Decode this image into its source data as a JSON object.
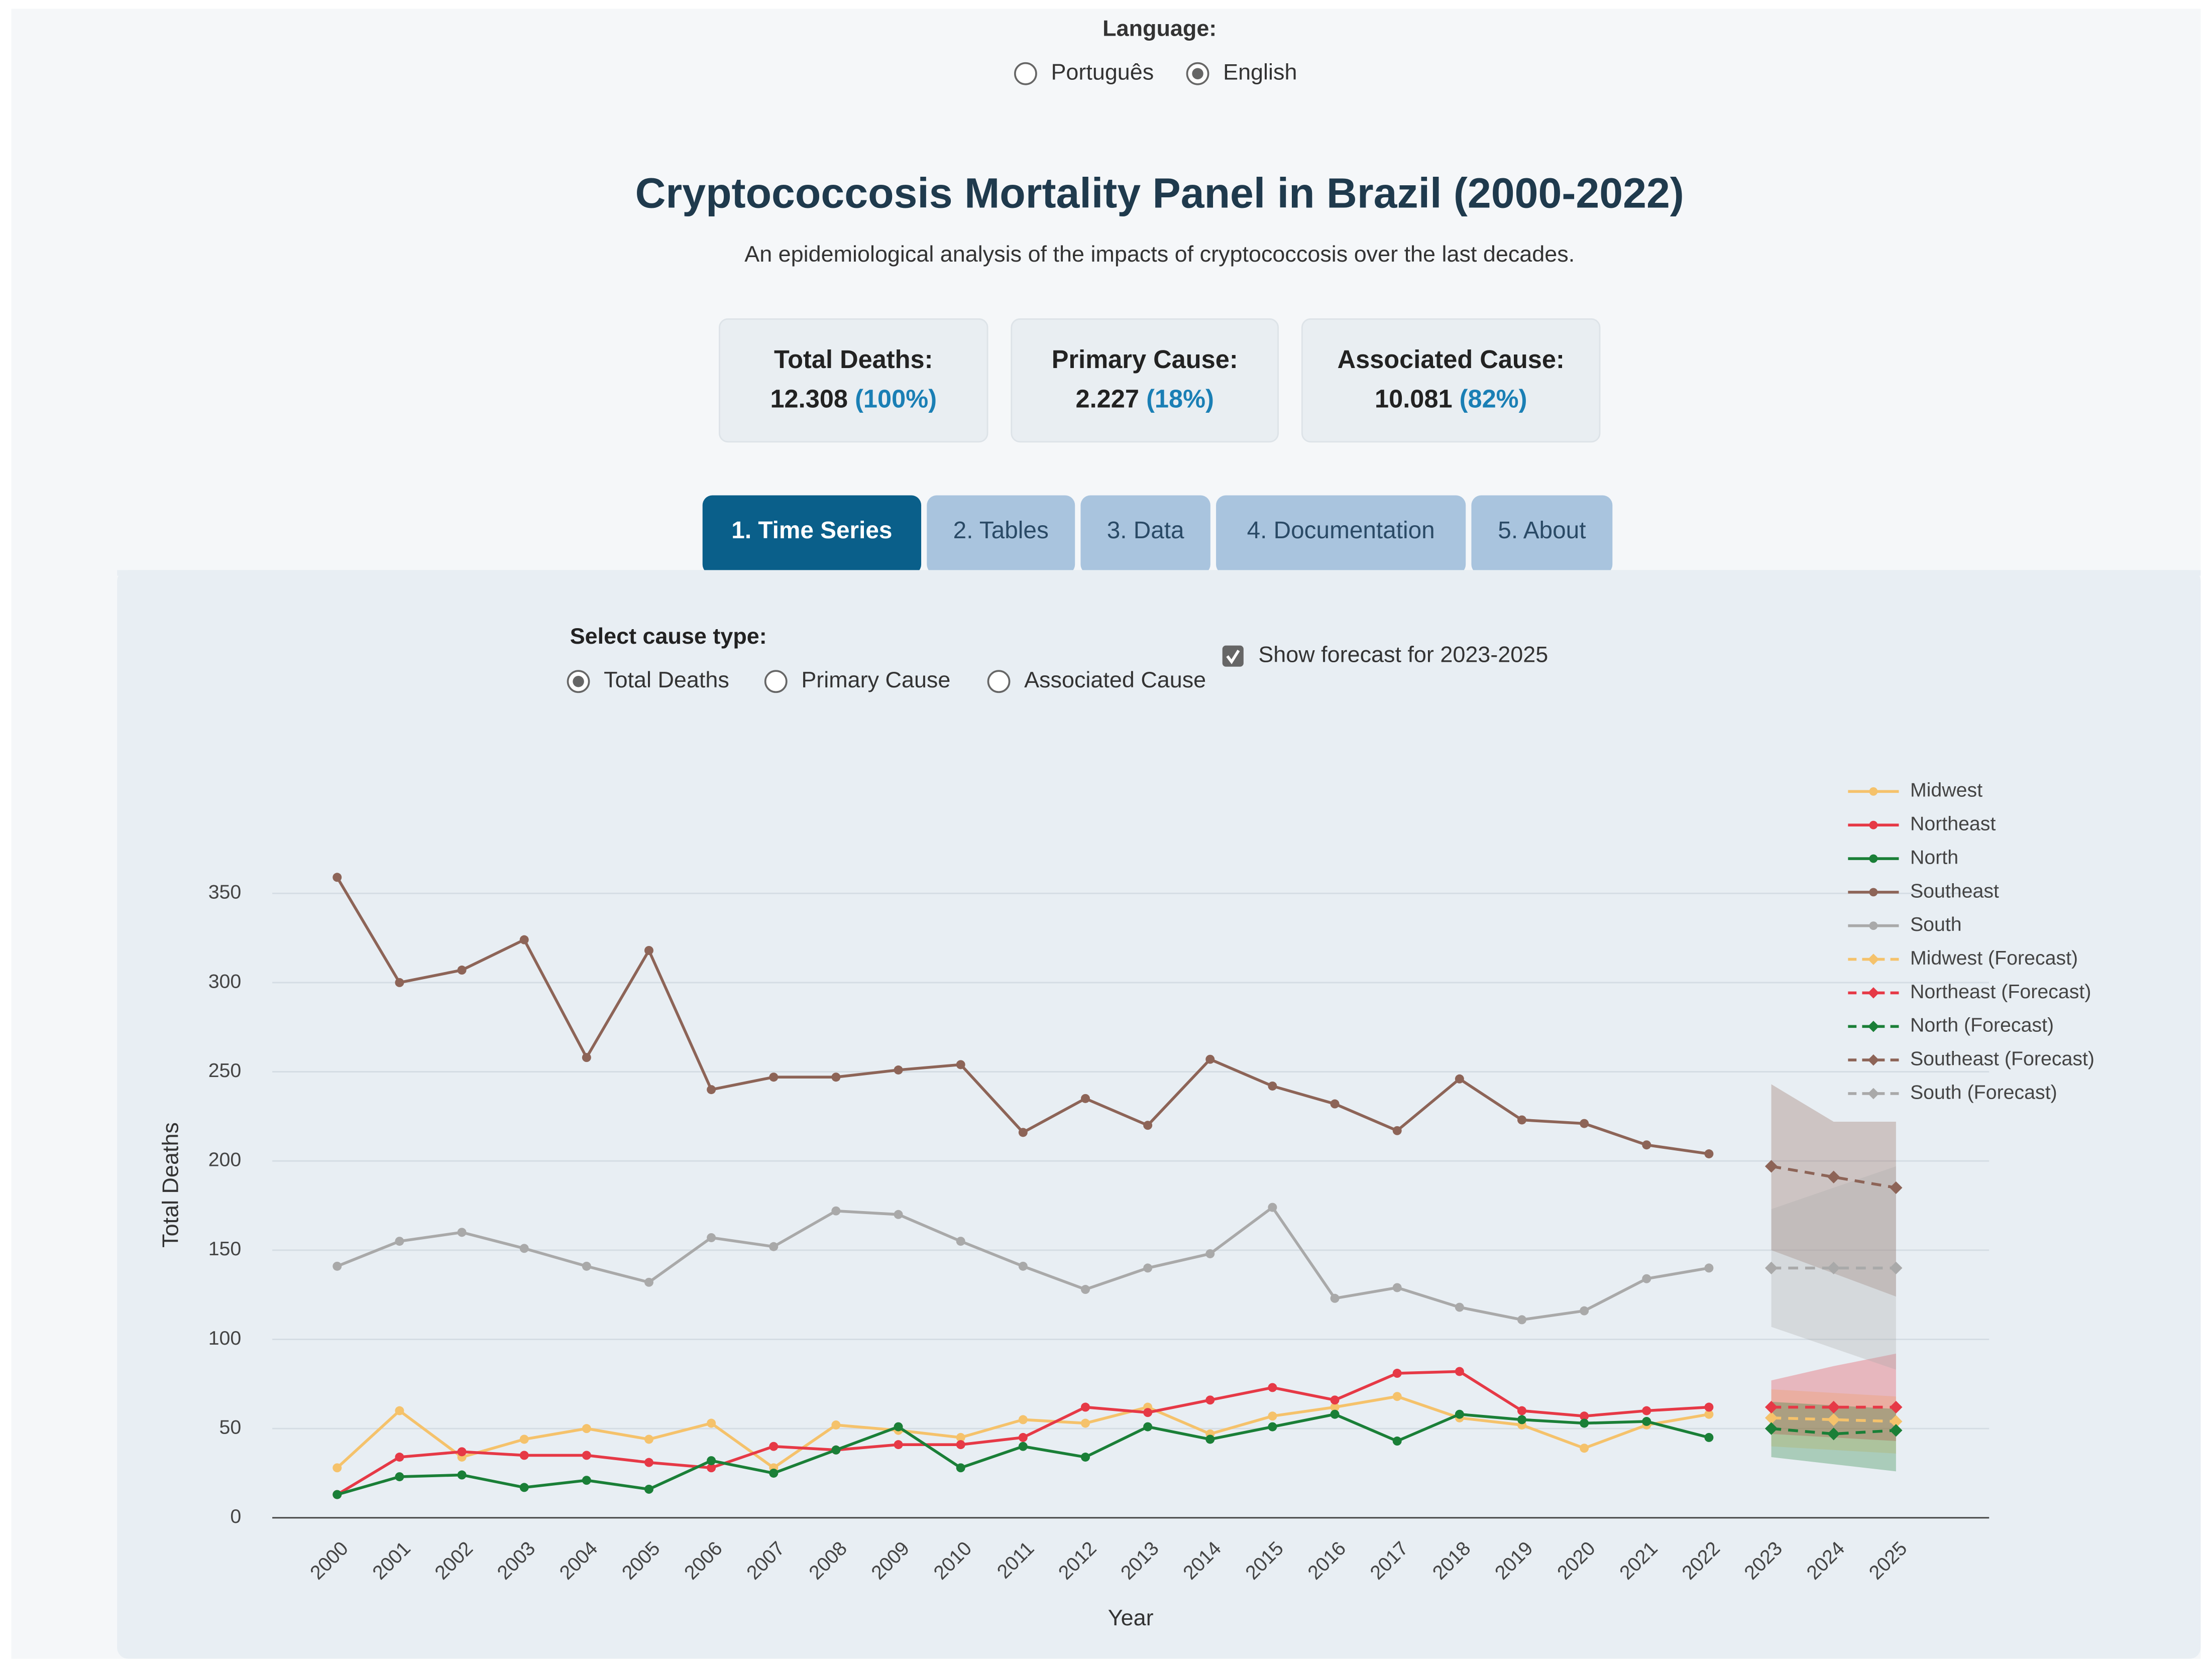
{
  "language": {
    "label": "Language:",
    "options": [
      "Português",
      "English"
    ],
    "selected_index": 1
  },
  "header": {
    "title": "Cryptococcosis Mortality Panel in Brazil (2000-2022)",
    "subtitle": "An epidemiological analysis of the impacts of cryptococcosis over the last decades."
  },
  "cards": [
    {
      "label": "Total Deaths:",
      "value": "12.308",
      "percent": "(100%)"
    },
    {
      "label": "Primary Cause:",
      "value": "2.227",
      "percent": "(18%)"
    },
    {
      "label": "Associated Cause:",
      "value": "10.081",
      "percent": "(82%)"
    }
  ],
  "tabs": {
    "items": [
      "1. Time Series",
      "2. Tables",
      "3. Data",
      "4. Documentation",
      "5. About"
    ],
    "active_index": 0
  },
  "controls": {
    "cause_label": "Select cause type:",
    "cause_options": [
      "Total Deaths",
      "Primary Cause",
      "Associated Cause"
    ],
    "selected_index": 0,
    "forecast_label": "Show forecast for 2023-2025",
    "forecast_checked": true
  },
  "chart_data": {
    "type": "line",
    "xlabel": "Year",
    "ylabel": "Total Deaths",
    "categories": [
      "2000",
      "2001",
      "2002",
      "2003",
      "2004",
      "2005",
      "2006",
      "2007",
      "2008",
      "2009",
      "2010",
      "2011",
      "2012",
      "2013",
      "2014",
      "2015",
      "2016",
      "2017",
      "2018",
      "2019",
      "2020",
      "2021",
      "2022",
      "2023",
      "2024",
      "2025"
    ],
    "ylim": [
      0,
      400
    ],
    "yticks": [
      0,
      50,
      100,
      150,
      200,
      250,
      300,
      350
    ],
    "grid": true,
    "legend": "upper right",
    "series": [
      {
        "name": "Midwest",
        "color": "#f5c26b",
        "values": [
          28,
          60,
          34,
          44,
          50,
          44,
          53,
          28,
          52,
          49,
          45,
          55,
          53,
          62,
          47,
          57,
          62,
          68,
          56,
          52,
          39,
          52,
          58,
          null,
          null,
          null
        ]
      },
      {
        "name": "Northeast",
        "color": "#e63946",
        "values": [
          13,
          34,
          37,
          35,
          35,
          31,
          28,
          40,
          38,
          41,
          41,
          45,
          62,
          59,
          66,
          73,
          66,
          81,
          82,
          60,
          57,
          60,
          62,
          null,
          null,
          null
        ]
      },
      {
        "name": "North",
        "color": "#1a7f37",
        "values": [
          13,
          23,
          24,
          17,
          21,
          16,
          32,
          25,
          38,
          51,
          28,
          40,
          34,
          51,
          44,
          51,
          58,
          43,
          58,
          55,
          53,
          54,
          45,
          null,
          null,
          null
        ]
      },
      {
        "name": "Southeast",
        "color": "#8d6457",
        "values": [
          359,
          300,
          307,
          324,
          258,
          318,
          240,
          247,
          247,
          251,
          254,
          216,
          235,
          220,
          257,
          242,
          232,
          217,
          246,
          223,
          221,
          209,
          204,
          null,
          null,
          null
        ]
      },
      {
        "name": "South",
        "color": "#a9a9a9",
        "values": [
          141,
          155,
          160,
          151,
          141,
          132,
          157,
          152,
          172,
          170,
          155,
          141,
          128,
          140,
          148,
          174,
          123,
          129,
          118,
          111,
          116,
          134,
          140,
          null,
          null,
          null
        ]
      },
      {
        "name": "Midwest (Forecast)",
        "color": "#f5c26b",
        "dashed": true,
        "values": [
          null,
          null,
          null,
          null,
          null,
          null,
          null,
          null,
          null,
          null,
          null,
          null,
          null,
          null,
          null,
          null,
          null,
          null,
          null,
          null,
          null,
          null,
          null,
          56,
          55,
          54
        ],
        "lower": [
          null,
          null,
          null,
          null,
          null,
          null,
          null,
          null,
          null,
          null,
          null,
          null,
          null,
          null,
          null,
          null,
          null,
          null,
          null,
          null,
          null,
          null,
          null,
          40,
          38,
          36
        ],
        "upper": [
          null,
          null,
          null,
          null,
          null,
          null,
          null,
          null,
          null,
          null,
          null,
          null,
          null,
          null,
          null,
          null,
          null,
          null,
          null,
          null,
          null,
          null,
          null,
          72,
          70,
          68
        ]
      },
      {
        "name": "Northeast (Forecast)",
        "color": "#e63946",
        "dashed": true,
        "values": [
          null,
          null,
          null,
          null,
          null,
          null,
          null,
          null,
          null,
          null,
          null,
          null,
          null,
          null,
          null,
          null,
          null,
          null,
          null,
          null,
          null,
          null,
          null,
          62,
          62,
          62
        ],
        "lower": [
          null,
          null,
          null,
          null,
          null,
          null,
          null,
          null,
          null,
          null,
          null,
          null,
          null,
          null,
          null,
          null,
          null,
          null,
          null,
          null,
          null,
          null,
          null,
          47,
          45,
          43
        ],
        "upper": [
          null,
          null,
          null,
          null,
          null,
          null,
          null,
          null,
          null,
          null,
          null,
          null,
          null,
          null,
          null,
          null,
          null,
          null,
          null,
          null,
          null,
          null,
          null,
          77,
          85,
          92
        ]
      },
      {
        "name": "North (Forecast)",
        "color": "#1a7f37",
        "dashed": true,
        "values": [
          null,
          null,
          null,
          null,
          null,
          null,
          null,
          null,
          null,
          null,
          null,
          null,
          null,
          null,
          null,
          null,
          null,
          null,
          null,
          null,
          null,
          null,
          null,
          50,
          47,
          49
        ],
        "lower": [
          null,
          null,
          null,
          null,
          null,
          null,
          null,
          null,
          null,
          null,
          null,
          null,
          null,
          null,
          null,
          null,
          null,
          null,
          null,
          null,
          null,
          null,
          null,
          34,
          30,
          26
        ],
        "upper": [
          null,
          null,
          null,
          null,
          null,
          null,
          null,
          null,
          null,
          null,
          null,
          null,
          null,
          null,
          null,
          null,
          null,
          null,
          null,
          null,
          null,
          null,
          null,
          65,
          63,
          61
        ]
      },
      {
        "name": "Southeast (Forecast)",
        "color": "#8d6457",
        "dashed": true,
        "values": [
          null,
          null,
          null,
          null,
          null,
          null,
          null,
          null,
          null,
          null,
          null,
          null,
          null,
          null,
          null,
          null,
          null,
          null,
          null,
          null,
          null,
          null,
          null,
          197,
          191,
          185
        ],
        "lower": [
          null,
          null,
          null,
          null,
          null,
          null,
          null,
          null,
          null,
          null,
          null,
          null,
          null,
          null,
          null,
          null,
          null,
          null,
          null,
          null,
          null,
          null,
          null,
          150,
          137,
          124
        ],
        "upper": [
          null,
          null,
          null,
          null,
          null,
          null,
          null,
          null,
          null,
          null,
          null,
          null,
          null,
          null,
          null,
          null,
          null,
          null,
          null,
          null,
          null,
          null,
          null,
          243,
          222,
          222
        ]
      },
      {
        "name": "South (Forecast)",
        "color": "#a9a9a9",
        "dashed": true,
        "values": [
          null,
          null,
          null,
          null,
          null,
          null,
          null,
          null,
          null,
          null,
          null,
          null,
          null,
          null,
          null,
          null,
          null,
          null,
          null,
          null,
          null,
          null,
          null,
          140,
          140,
          140
        ],
        "lower": [
          null,
          null,
          null,
          null,
          null,
          null,
          null,
          null,
          null,
          null,
          null,
          null,
          null,
          null,
          null,
          null,
          null,
          null,
          null,
          null,
          null,
          null,
          null,
          107,
          95,
          83
        ],
        "upper": [
          null,
          null,
          null,
          null,
          null,
          null,
          null,
          null,
          null,
          null,
          null,
          null,
          null,
          null,
          null,
          null,
          null,
          null,
          null,
          null,
          null,
          null,
          null,
          173,
          185,
          197
        ]
      }
    ]
  }
}
